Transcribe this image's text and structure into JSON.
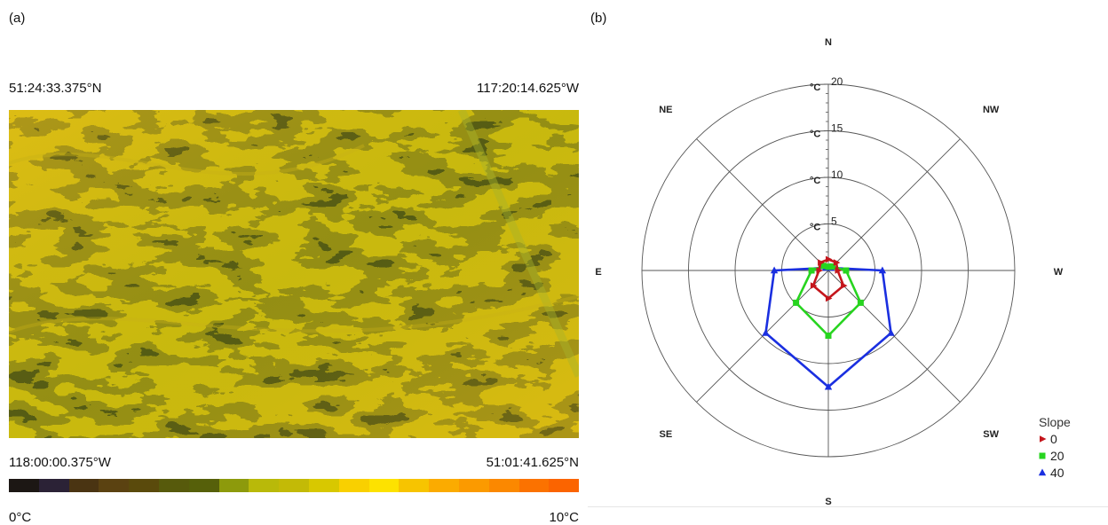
{
  "panel_a": {
    "label": "(a)",
    "top_left_coord": "51:24:33.375°N",
    "top_right_coord": "117:20:14.625°W",
    "bottom_left_coord": "118:00:00.375°W",
    "bottom_right_coord": "51:01:41.625°N",
    "colorbar_min": "0°C",
    "colorbar_max": "10°C",
    "colorbar_colors": [
      "#1c1714",
      "#2b2236",
      "#4a3412",
      "#5b4211",
      "#5a4a0c",
      "#575a0c",
      "#56600a",
      "#8d9a0c",
      "#b9b909",
      "#c3ba06",
      "#d8c800",
      "#f9d000",
      "#fde200",
      "#f7c400",
      "#fbab00",
      "#fb9a00",
      "#fb8800",
      "#fb7200",
      "#fb6400"
    ]
  },
  "chart_data": {
    "type": "radar",
    "panel_label": "(b)",
    "directions": [
      "N",
      "NW",
      "W",
      "SW",
      "S",
      "SE",
      "E",
      "NE"
    ],
    "radial_ticks": [
      5,
      10,
      15,
      20
    ],
    "radial_unit": "°C",
    "rmax": 20,
    "legend_title": "Slope",
    "legend_position": "bottom-right",
    "series": [
      {
        "name": "0",
        "color": "#c4161c",
        "marker": "triangle-right",
        "values": [
          1.2,
          1.2,
          1.0,
          2.3,
          3.0,
          2.3,
          1.0,
          1.2
        ]
      },
      {
        "name": "20",
        "color": "#27d41f",
        "marker": "square",
        "values": [
          0.4,
          0.6,
          1.9,
          4.9,
          7.0,
          4.9,
          1.8,
          0.7
        ]
      },
      {
        "name": "40",
        "color": "#1a2fe0",
        "marker": "triangle-up",
        "values": [
          0.3,
          0.4,
          5.8,
          9.5,
          12.5,
          9.5,
          5.8,
          0.4
        ]
      }
    ]
  }
}
